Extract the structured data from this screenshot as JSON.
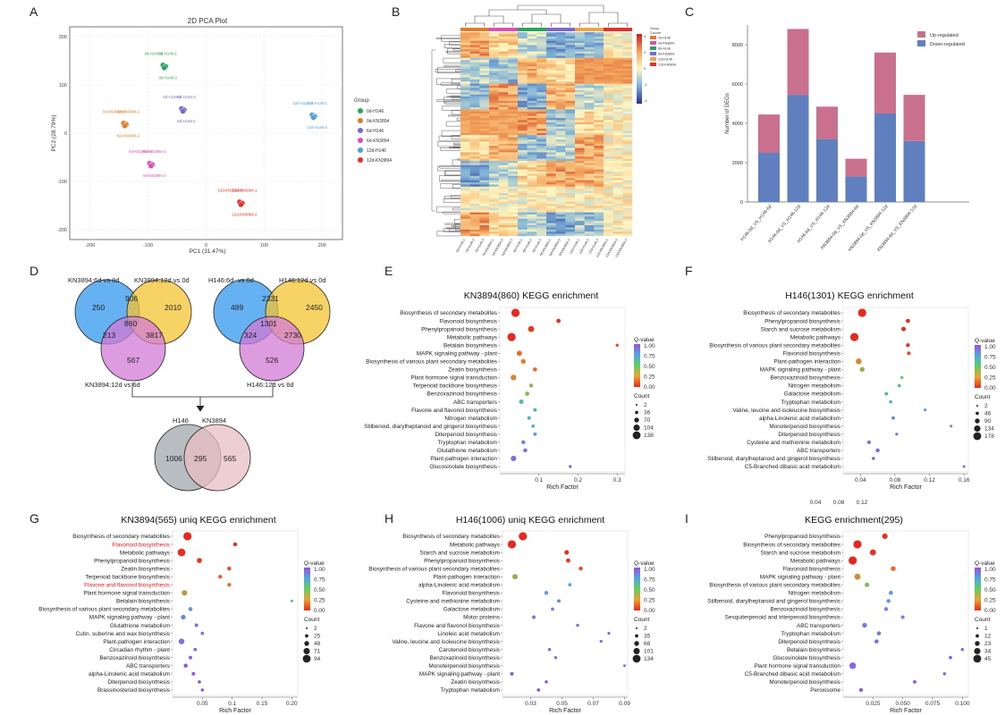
{
  "panel_letters": [
    "A",
    "B",
    "C",
    "D",
    "E",
    "F",
    "G",
    "H",
    "I"
  ],
  "pca": {
    "title": "2D PCA Plot",
    "xlabel": "PC1 (31.47%)",
    "ylabel": "PC2 (28.79%)",
    "xticks": [
      "-200",
      "-100",
      "0",
      "100",
      "200"
    ],
    "yticks": [
      "200",
      "100",
      "0",
      "-100",
      "-200"
    ],
    "legend_title": "Group",
    "legend": [
      "0d-H146",
      "0d-KN3894",
      "6d-H146",
      "6d-KN3894",
      "12d-H146",
      "12d-KN3894"
    ],
    "colors": [
      "#2ca25f",
      "#e07b2a",
      "#7b68c8",
      "#d94fb4",
      "#4f9fd9",
      "#e0312a"
    ],
    "groups": [
      {
        "name": "0d-H146",
        "x": -72,
        "y": 138,
        "labels": [
          "0d-H146-2",
          "0d-H146-1",
          "0d-H146-3"
        ]
      },
      {
        "name": "0d-KN3894",
        "x": -140,
        "y": 18,
        "labels": [
          "0d-KN3894-3",
          "0d-KN3894-1",
          "0d-KN3894-2"
        ]
      },
      {
        "name": "6d-H146",
        "x": -40,
        "y": 48,
        "labels": [
          "6d-H146-1",
          "6d-H146-3",
          "6d-H146-2"
        ]
      },
      {
        "name": "6d-KN3894",
        "x": -95,
        "y": -65,
        "labels": [
          "6d-KN3894-3",
          "6d-KN3894-1",
          "6d-KN3894-2"
        ]
      },
      {
        "name": "12d-H146",
        "x": 185,
        "y": 35,
        "labels": [
          "12d-H146-2",
          "12d-H146-1",
          "12d-H146-3"
        ]
      },
      {
        "name": "12d-KN3894",
        "x": 60,
        "y": -145,
        "labels": [
          "12d-KN3894-3",
          "12d-KN3894-1",
          "12d-KN3894-2"
        ]
      }
    ]
  },
  "heatmap": {
    "legend_title": "Group",
    "legend_sub": "Z-score",
    "scale_ticks": [
      "4",
      "2",
      "0",
      "-2",
      "-4"
    ],
    "groups": [
      "0d-H146",
      "0d-KN3894",
      "6d-H146",
      "6d-KN3894",
      "12d-H146",
      "12d-KN3894"
    ],
    "columns": [
      "0d-H146-1",
      "0d-H146-2",
      "0d-H146-3",
      "0d-KN3894-1",
      "0d-KN3894-2",
      "0d-KN3894-3",
      "6d-H146-1",
      "6d-H146-2",
      "6d-H146-3",
      "6d-KN3894-1",
      "6d-KN3894-2",
      "6d-KN3894-3",
      "12d-H146-1",
      "12d-H146-2",
      "12d-H146-3",
      "12d-KN3894-1",
      "12d-KN3894-2",
      "12d-KN3894-3"
    ]
  },
  "chart_data": [
    {
      "type": "bar",
      "panel": "C",
      "title": "",
      "xlabel": "",
      "ylabel": "Number of DEGs",
      "ylim": [
        0,
        9000
      ],
      "yticks": [
        "0",
        "2000",
        "4000",
        "6000",
        "8000"
      ],
      "categories": [
        "H146-0d_VS_H146-6d",
        "H146-0d_VS_H146-12d",
        "H146-6d_VS_H146-12d",
        "KN3894-0d_VS_KN3894-6d",
        "KN3894-0d_VS_KN3894-12d",
        "KN3894-6d_VS_KN3894-12d"
      ],
      "series": [
        {
          "name": "Down-regulated",
          "color": "#5f7fbf",
          "values": [
            2500,
            5450,
            3200,
            1300,
            4500,
            3100
          ]
        },
        {
          "name": "Up-regulated",
          "color": "#c9708f",
          "values": [
            1950,
            3350,
            1650,
            900,
            3100,
            2350
          ]
        }
      ]
    },
    {
      "type": "scatter",
      "panel": "E",
      "title": "KN3894(860) KEGG enrichment",
      "xlabel": "Rich Factor",
      "xlim": [
        0,
        0.32
      ],
      "xticks": [
        "0.1",
        "0.2",
        "0.3"
      ],
      "terms": [
        "Biosynthesis of secondary metabolites",
        "Flavonoid biosynthesis",
        "Phenylpropanoid biosynthesis",
        "Metabolic pathways",
        "Betalain biosynthesis",
        "MAPK signaling pathway - plant",
        "Biosynthesis of various plant secondary metabolites",
        "Zeatin biosynthesis",
        "Plant hormone signal transduction",
        "Terpenoid backbone biosynthesis",
        "Benzoxazinoid biosynthesis",
        "ABC transporters",
        "Flavone and flavonol biosynthesis",
        "Nitrogen metabolism",
        "Stilbenoid, diarylheptanoid and gingerol biosynthesis",
        "Diterpenoid biosynthesis",
        "Tryptophan metabolism",
        "Glutathione metabolism",
        "Plant-pathogen interaction",
        "Glucosinolate biosynthesis"
      ],
      "rich_factor": [
        0.04,
        0.15,
        0.08,
        0.03,
        0.3,
        0.05,
        0.06,
        0.09,
        0.035,
        0.08,
        0.07,
        0.055,
        0.09,
        0.075,
        0.085,
        0.09,
        0.06,
        0.065,
        0.035,
        0.18
      ],
      "qvalue": [
        0,
        0.02,
        0.05,
        0,
        0.1,
        0.2,
        0.25,
        0.2,
        0.3,
        0.4,
        0.45,
        0.6,
        0.7,
        0.7,
        0.72,
        0.8,
        0.85,
        0.9,
        0.92,
        0.95
      ],
      "count": [
        138,
        20,
        60,
        138,
        5,
        40,
        30,
        20,
        50,
        15,
        20,
        25,
        10,
        12,
        8,
        10,
        15,
        18,
        45,
        5
      ],
      "legend_q_title": "Q-value",
      "legend_q_ticks": [
        "1.00",
        "0.75",
        "0.50",
        "0.25",
        "0.00"
      ],
      "legend_count_title": "Count",
      "legend_count": [
        "2",
        "36",
        "70",
        "104",
        "138"
      ]
    },
    {
      "type": "scatter",
      "panel": "F",
      "title": "H146(1301) KEGG enrichment",
      "xlabel": "Rich Factor",
      "xlim": [
        0.02,
        0.165
      ],
      "xticks": [
        "0.04",
        "0.08",
        "0.12",
        "0.16"
      ],
      "extra_ticks": [
        "0.04",
        "0.08",
        "0.12"
      ],
      "terms": [
        "Biosynthesis of secondary metabolites",
        "Phenylpropanoid biosynthesis",
        "Starch and sucrose metabolism",
        "Metabolic pathways",
        "Biosynthesis of various plant secondary metabolites",
        "Flavonoid biosynthesis",
        "Plant-pathogen interaction",
        "MAPK signaling pathway - plant",
        "Benzoxazinoid biosynthesis",
        "Nitrogen metabolism",
        "Galactose metabolism",
        "Tryptophan metabolism",
        "Valine, leucine and isoleucine biosynthesis",
        "alpha-Linolenic acid metabolism",
        "Monoterpenoid biosynthesis",
        "Diterpenoid biosynthesis",
        "Cysteine and methionine metabolism",
        "ABC transporters",
        "Stilbenoid, diarylheptanoid and gingerol biosynthesis",
        "C5-Branched dibasic acid metabolism"
      ],
      "rich_factor": [
        0.042,
        0.095,
        0.09,
        0.033,
        0.095,
        0.096,
        0.038,
        0.042,
        0.088,
        0.085,
        0.07,
        0.075,
        0.115,
        0.078,
        0.145,
        0.082,
        0.05,
        0.06,
        0.055,
        0.16
      ],
      "qvalue": [
        0,
        0.01,
        0.02,
        0,
        0.05,
        0.08,
        0.3,
        0.4,
        0.55,
        0.6,
        0.7,
        0.72,
        0.8,
        0.82,
        0.85,
        0.88,
        0.9,
        0.92,
        0.94,
        0.97
      ],
      "count": [
        178,
        25,
        30,
        178,
        20,
        15,
        70,
        40,
        8,
        10,
        12,
        10,
        5,
        12,
        4,
        6,
        15,
        20,
        8,
        3
      ],
      "legend_q_title": "Q-value",
      "legend_q_ticks": [
        "1.00",
        "0.75",
        "0.50",
        "0.25",
        "0.00"
      ],
      "legend_count_title": "Count",
      "legend_count": [
        "2",
        "46",
        "90",
        "134",
        "178"
      ]
    },
    {
      "type": "scatter",
      "panel": "G",
      "title": "KN3894(565) uniq KEGG enrichment",
      "xlabel": "Rich Factor",
      "xlim": [
        0,
        0.21
      ],
      "xticks": [
        "0.05",
        "0.1",
        "0.15",
        "0.20"
      ],
      "terms": [
        "Biosynthesis of secondary metabolites",
        "Flavonoid biosynthesis",
        "Metabolic pathways",
        "Phenylpropanoid biosynthesis",
        "Zeatin biosynthesis",
        "Terpenoid backbone biosynthesis",
        "Flavone and flavonol biosynthesis",
        "Plant hormone signal transduction",
        "Betalain biosynthesis",
        "Biosynthesis of various plant secondary metabolites",
        "MAPK signaling pathway - plant",
        "Glutathione metabolism",
        "Cutin, suberine and wax biosynthesis",
        "Plant-pathogen interaction",
        "Circadian rhythm - plant",
        "Benzoxazinoid biosynthesis",
        "ABC transporters",
        "alpha-Linolenic acid metabolism",
        "Diterpenoid biosynthesis",
        "Brassinosteroid biosynthesis"
      ],
      "highlight": [
        1,
        6
      ],
      "rich_factor": [
        0.025,
        0.105,
        0.015,
        0.045,
        0.095,
        0.08,
        0.095,
        0.02,
        0.2,
        0.03,
        0.018,
        0.04,
        0.05,
        0.015,
        0.038,
        0.03,
        0.022,
        0.035,
        0.045,
        0.05
      ],
      "qvalue": [
        0,
        0.02,
        0.02,
        0.05,
        0.1,
        0.15,
        0.2,
        0.35,
        0.6,
        0.8,
        0.85,
        0.88,
        0.9,
        0.92,
        0.94,
        0.95,
        0.96,
        0.97,
        0.98,
        0.99
      ],
      "count": [
        94,
        10,
        80,
        25,
        10,
        10,
        8,
        30,
        2,
        12,
        20,
        8,
        6,
        35,
        6,
        8,
        12,
        8,
        5,
        4
      ],
      "legend_q_title": "Q-value",
      "legend_q_ticks": [
        "1.00",
        "0.75",
        "0.50",
        "0.25",
        "0.00"
      ],
      "legend_count_title": "Count",
      "legend_count": [
        "2",
        "25",
        "48",
        "71",
        "94"
      ]
    },
    {
      "type": "scatter",
      "panel": "H",
      "title": "H146(1006) uniq KEGG enrichment",
      "xlabel": "Rich Factor",
      "xlim": [
        0.012,
        0.092
      ],
      "xticks": [
        "0.03",
        "0.05",
        "0.07",
        "0.09"
      ],
      "terms": [
        "Biosynthesis of secondary metabolites",
        "Metabolic pathways",
        "Starch and sucrose metabolism",
        "Phenylpropanoid biosynthesis",
        "Biosynthesis of various plant secondary metabolites",
        "Plant-pathogen interaction",
        "alpha-Linolenic acid metabolism",
        "Flavonoid biosynthesis",
        "Cysteine and methionine metabolism",
        "Galactose metabolism",
        "Motor proteins",
        "Flavone and flavonol biosynthesis",
        "Linoleic acid metabolism",
        "Valine, leucine and isoleucine biosynthesis",
        "Carotenoid biosynthesis",
        "Benzoxazinoid biosynthesis",
        "Monoterpenoid biosynthesis",
        "MAPK signaling pathway - plant",
        "Zeatin biosynthesis",
        "Tryptophan metabolism"
      ],
      "rich_factor": [
        0.025,
        0.018,
        0.053,
        0.054,
        0.062,
        0.02,
        0.055,
        0.04,
        0.048,
        0.044,
        0.032,
        0.06,
        0.08,
        0.075,
        0.042,
        0.046,
        0.09,
        0.018,
        0.04,
        0.035
      ],
      "qvalue": [
        0,
        0,
        0.02,
        0.03,
        0.1,
        0.4,
        0.75,
        0.8,
        0.85,
        0.87,
        0.88,
        0.9,
        0.91,
        0.92,
        0.93,
        0.94,
        0.95,
        0.96,
        0.97,
        0.98
      ],
      "count": [
        134,
        134,
        25,
        20,
        15,
        40,
        8,
        15,
        10,
        8,
        12,
        6,
        4,
        4,
        6,
        5,
        2,
        12,
        6,
        8
      ],
      "legend_q_title": "Q-value",
      "legend_q_ticks": [
        "1.00",
        "0.75",
        "0.50",
        "0.25",
        "0.00"
      ],
      "legend_count_title": "Count",
      "legend_count": [
        "2",
        "35",
        "68",
        "101",
        "134"
      ]
    },
    {
      "type": "scatter",
      "panel": "I",
      "title": "KEGG enrichment(295)",
      "xlabel": "Rich Factor",
      "xlim": [
        0,
        0.105
      ],
      "xticks": [
        "0.025",
        "0.050",
        "0.075",
        "0.100"
      ],
      "terms": [
        "Phenylpropanoid biosynthesis",
        "Biosynthesis of secondary metabolites",
        "Starch and sucrose metabolism",
        "Metabolic pathways",
        "Flavonoid biosynthesis",
        "MAPK signaling pathway - plant",
        "Biosynthesis of various plant secondary metabolites",
        "Nitrogen metabolism",
        "Stilbenoid, diarylheptanoid and gingerol biosynthesis",
        "Benzoxazinoid biosynthesis",
        "Sesquiterpenoid and triterpenoid biosynthesis",
        "ABC transporters",
        "Tryptophan metabolism",
        "Diterpenoid biosynthesis",
        "Betalain biosynthesis",
        "Glucosinolate biosynthesis",
        "Plant hormone signal transduction",
        "C5-Branched dibasic acid metabolism",
        "Monoterpenoid biosynthesis",
        "Peroxisome"
      ],
      "rich_factor": [
        0.035,
        0.012,
        0.025,
        0.008,
        0.042,
        0.012,
        0.02,
        0.04,
        0.038,
        0.036,
        0.05,
        0.018,
        0.03,
        0.028,
        0.1,
        0.09,
        0.008,
        0.085,
        0.06,
        0.015
      ],
      "qvalue": [
        0.02,
        0,
        0.03,
        0,
        0.2,
        0.3,
        0.45,
        0.8,
        0.82,
        0.84,
        0.86,
        0.88,
        0.9,
        0.91,
        0.92,
        0.93,
        0.94,
        0.95,
        0.96,
        0.97
      ],
      "count": [
        15,
        45,
        20,
        45,
        10,
        20,
        8,
        6,
        5,
        5,
        4,
        10,
        6,
        6,
        2,
        3,
        25,
        2,
        3,
        5
      ],
      "legend_q_title": "Q-value",
      "legend_q_ticks": [
        "1.00",
        "0.75",
        "0.50",
        "0.25",
        "0.00"
      ],
      "legend_count_title": "Count",
      "legend_count": [
        "1",
        "12",
        "23",
        "34",
        "45"
      ]
    }
  ],
  "venn": {
    "left": {
      "labels": [
        "KN3894:6d vs 0d",
        "KN3894:12d vs 0d",
        "KN3894:12d vs 6d"
      ],
      "values": {
        "a": "250",
        "ab": "906",
        "b": "2010",
        "abc": "860",
        "ac": "213",
        "bc": "3817",
        "c": "567"
      }
    },
    "right": {
      "labels": [
        "H146:6d- vs 0d",
        "H146:12d vs 0d",
        "H146:12d vs 6d"
      ],
      "values": {
        "a": "489",
        "ab": "2331",
        "b": "2450",
        "abc": "1301",
        "ac": "324",
        "bc": "2730",
        "c": "526"
      }
    },
    "bottom": {
      "labels": [
        "H146",
        "KN3894"
      ],
      "values": {
        "a": "1006",
        "ab": "295",
        "b": "565"
      }
    }
  }
}
